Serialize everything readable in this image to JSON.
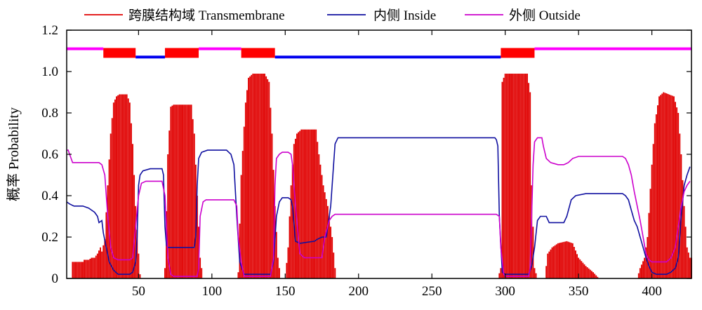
{
  "chart_data": {
    "type": "line",
    "xlabel": "",
    "ylabel": "概率 Probability",
    "xlim": [
      1,
      427
    ],
    "ylim": [
      0,
      1.2
    ],
    "xticks": [
      50,
      100,
      150,
      200,
      250,
      300,
      350,
      400
    ],
    "yticks": [
      0,
      0.2,
      0.4,
      0.6,
      0.8,
      1.0,
      1.2
    ],
    "ytick_labels": [
      "0",
      "0.2",
      "0.4",
      "0.6",
      "0.8",
      "1.0",
      "1.2"
    ],
    "grid": false,
    "legend_position": "top",
    "series": [
      {
        "name": "跨膜结构域 Transmembrane",
        "style": "bars",
        "color": "#e00000",
        "points": [
          [
            4,
            0
          ],
          [
            5,
            0.08
          ],
          [
            12,
            0.08
          ],
          [
            13,
            0.09
          ],
          [
            16,
            0.09
          ],
          [
            18,
            0.1
          ],
          [
            20,
            0.1
          ],
          [
            22,
            0.12
          ],
          [
            24,
            0.15
          ],
          [
            25,
            0.13
          ],
          [
            27,
            0.19
          ],
          [
            29,
            0.45
          ],
          [
            31,
            0.7
          ],
          [
            33,
            0.85
          ],
          [
            35,
            0.88
          ],
          [
            37,
            0.89
          ],
          [
            42,
            0.89
          ],
          [
            44,
            0.85
          ],
          [
            46,
            0.65
          ],
          [
            48,
            0.35
          ],
          [
            50,
            0.12
          ],
          [
            51,
            0.02
          ],
          [
            52,
            0
          ],
          [
            67,
            0
          ],
          [
            68,
            0.05
          ],
          [
            70,
            0.6
          ],
          [
            72,
            0.83
          ],
          [
            74,
            0.84
          ],
          [
            86,
            0.84
          ],
          [
            88,
            0.7
          ],
          [
            90,
            0.4
          ],
          [
            92,
            0.1
          ],
          [
            94,
            0
          ],
          [
            117,
            0
          ],
          [
            118,
            0.03
          ],
          [
            120,
            0.5
          ],
          [
            123,
            0.85
          ],
          [
            125,
            0.97
          ],
          [
            128,
            0.99
          ],
          [
            136,
            0.99
          ],
          [
            139,
            0.95
          ],
          [
            141,
            0.7
          ],
          [
            143,
            0.35
          ],
          [
            145,
            0.1
          ],
          [
            147,
            0
          ],
          [
            150,
            0
          ],
          [
            152,
            0.15
          ],
          [
            154,
            0.45
          ],
          [
            156,
            0.65
          ],
          [
            158,
            0.7
          ],
          [
            161,
            0.72
          ],
          [
            171,
            0.72
          ],
          [
            173,
            0.6
          ],
          [
            176,
            0.45
          ],
          [
            179,
            0.35
          ],
          [
            182,
            0.2
          ],
          [
            184,
            0.05
          ],
          [
            185,
            0
          ],
          [
            295,
            0
          ],
          [
            297,
            0.05
          ],
          [
            298,
            0.95
          ],
          [
            300,
            0.99
          ],
          [
            315,
            0.99
          ],
          [
            317,
            0.9
          ],
          [
            318,
            0.45
          ],
          [
            320,
            0.05
          ],
          [
            322,
            0
          ],
          [
            327,
            0
          ],
          [
            329,
            0.12
          ],
          [
            332,
            0.15
          ],
          [
            336,
            0.17
          ],
          [
            342,
            0.18
          ],
          [
            346,
            0.17
          ],
          [
            350,
            0.1
          ],
          [
            355,
            0.06
          ],
          [
            360,
            0.03
          ],
          [
            364,
            0
          ],
          [
            390,
            0
          ],
          [
            392,
            0.05
          ],
          [
            395,
            0.1
          ],
          [
            397,
            0.2
          ],
          [
            400,
            0.55
          ],
          [
            402,
            0.75
          ],
          [
            405,
            0.88
          ],
          [
            408,
            0.9
          ],
          [
            415,
            0.88
          ],
          [
            418,
            0.8
          ],
          [
            420,
            0.6
          ],
          [
            422,
            0.35
          ],
          [
            424,
            0.15
          ],
          [
            426,
            0.1
          ]
        ]
      },
      {
        "name": "内侧 Inside",
        "style": "line",
        "color": "#1010a0",
        "points": [
          [
            1,
            0.37
          ],
          [
            3,
            0.36
          ],
          [
            6,
            0.35
          ],
          [
            12,
            0.35
          ],
          [
            16,
            0.34
          ],
          [
            20,
            0.32
          ],
          [
            22,
            0.3
          ],
          [
            23,
            0.27
          ],
          [
            25,
            0.28
          ],
          [
            26,
            0.22
          ],
          [
            28,
            0.15
          ],
          [
            30,
            0.08
          ],
          [
            33,
            0.04
          ],
          [
            36,
            0.02
          ],
          [
            44,
            0.02
          ],
          [
            46,
            0.03
          ],
          [
            48,
            0.08
          ],
          [
            49,
            0.2
          ],
          [
            50,
            0.45
          ],
          [
            51,
            0.5
          ],
          [
            53,
            0.52
          ],
          [
            58,
            0.53
          ],
          [
            66,
            0.53
          ],
          [
            67,
            0.5
          ],
          [
            68,
            0.25
          ],
          [
            69,
            0.16
          ],
          [
            70,
            0.15
          ],
          [
            88,
            0.15
          ],
          [
            89,
            0.2
          ],
          [
            90,
            0.45
          ],
          [
            91,
            0.58
          ],
          [
            93,
            0.61
          ],
          [
            97,
            0.62
          ],
          [
            110,
            0.62
          ],
          [
            113,
            0.6
          ],
          [
            115,
            0.55
          ],
          [
            117,
            0.3
          ],
          [
            119,
            0.08
          ],
          [
            122,
            0.02
          ],
          [
            140,
            0.02
          ],
          [
            142,
            0.08
          ],
          [
            144,
            0.3
          ],
          [
            146,
            0.37
          ],
          [
            148,
            0.39
          ],
          [
            152,
            0.39
          ],
          [
            154,
            0.38
          ],
          [
            155,
            0.35
          ],
          [
            157,
            0.18
          ],
          [
            160,
            0.17
          ],
          [
            170,
            0.18
          ],
          [
            172,
            0.19
          ],
          [
            175,
            0.2
          ],
          [
            178,
            0.2
          ],
          [
            181,
            0.35
          ],
          [
            183,
            0.55
          ],
          [
            184,
            0.65
          ],
          [
            186,
            0.68
          ],
          [
            200,
            0.68
          ],
          [
            293,
            0.68
          ],
          [
            294,
            0.67
          ],
          [
            295,
            0.64
          ],
          [
            296,
            0.3
          ],
          [
            298,
            0.03
          ],
          [
            300,
            0.02
          ],
          [
            316,
            0.02
          ],
          [
            318,
            0.06
          ],
          [
            320,
            0.15
          ],
          [
            322,
            0.28
          ],
          [
            324,
            0.3
          ],
          [
            328,
            0.3
          ],
          [
            330,
            0.27
          ],
          [
            336,
            0.27
          ],
          [
            340,
            0.27
          ],
          [
            342,
            0.3
          ],
          [
            345,
            0.38
          ],
          [
            348,
            0.4
          ],
          [
            355,
            0.41
          ],
          [
            380,
            0.41
          ],
          [
            382,
            0.4
          ],
          [
            384,
            0.38
          ],
          [
            386,
            0.33
          ],
          [
            388,
            0.28
          ],
          [
            390,
            0.25
          ],
          [
            392,
            0.2
          ],
          [
            394,
            0.15
          ],
          [
            396,
            0.1
          ],
          [
            398,
            0.06
          ],
          [
            400,
            0.03
          ],
          [
            403,
            0.02
          ],
          [
            410,
            0.02
          ],
          [
            413,
            0.03
          ],
          [
            416,
            0.05
          ],
          [
            418,
            0.1
          ],
          [
            420,
            0.3
          ],
          [
            422,
            0.45
          ],
          [
            424,
            0.5
          ],
          [
            426,
            0.54
          ]
        ]
      },
      {
        "name": "外侧 Outside",
        "style": "line",
        "color": "#cc00cc",
        "points": [
          [
            1,
            0.62
          ],
          [
            2,
            0.62
          ],
          [
            3,
            0.6
          ],
          [
            4,
            0.58
          ],
          [
            5,
            0.56
          ],
          [
            20,
            0.56
          ],
          [
            23,
            0.56
          ],
          [
            25,
            0.55
          ],
          [
            27,
            0.5
          ],
          [
            29,
            0.3
          ],
          [
            31,
            0.15
          ],
          [
            33,
            0.1
          ],
          [
            36,
            0.09
          ],
          [
            44,
            0.09
          ],
          [
            46,
            0.1
          ],
          [
            48,
            0.25
          ],
          [
            50,
            0.4
          ],
          [
            52,
            0.46
          ],
          [
            55,
            0.47
          ],
          [
            66,
            0.47
          ],
          [
            68,
            0.4
          ],
          [
            70,
            0.1
          ],
          [
            72,
            0.02
          ],
          [
            74,
            0.01
          ],
          [
            90,
            0.01
          ],
          [
            91,
            0.05
          ],
          [
            92,
            0.3
          ],
          [
            94,
            0.37
          ],
          [
            96,
            0.38
          ],
          [
            115,
            0.38
          ],
          [
            117,
            0.35
          ],
          [
            118,
            0.2
          ],
          [
            120,
            0.08
          ],
          [
            122,
            0.01
          ],
          [
            140,
            0.01
          ],
          [
            142,
            0.1
          ],
          [
            143,
            0.45
          ],
          [
            144,
            0.58
          ],
          [
            146,
            0.6
          ],
          [
            148,
            0.61
          ],
          [
            152,
            0.61
          ],
          [
            154,
            0.6
          ],
          [
            155,
            0.55
          ],
          [
            157,
            0.35
          ],
          [
            160,
            0.12
          ],
          [
            163,
            0.1
          ],
          [
            175,
            0.1
          ],
          [
            177,
            0.2
          ],
          [
            180,
            0.28
          ],
          [
            182,
            0.3
          ],
          [
            184,
            0.31
          ],
          [
            186,
            0.31
          ],
          [
            200,
            0.31
          ],
          [
            294,
            0.31
          ],
          [
            296,
            0.3
          ],
          [
            297,
            0.15
          ],
          [
            299,
            0.02
          ],
          [
            300,
            0.01
          ],
          [
            316,
            0.01
          ],
          [
            317,
            0.05
          ],
          [
            318,
            0.3
          ],
          [
            319,
            0.55
          ],
          [
            320,
            0.66
          ],
          [
            322,
            0.68
          ],
          [
            325,
            0.68
          ],
          [
            326,
            0.64
          ],
          [
            328,
            0.58
          ],
          [
            331,
            0.56
          ],
          [
            336,
            0.55
          ],
          [
            340,
            0.55
          ],
          [
            343,
            0.56
          ],
          [
            346,
            0.58
          ],
          [
            350,
            0.59
          ],
          [
            356,
            0.59
          ],
          [
            380,
            0.59
          ],
          [
            382,
            0.58
          ],
          [
            384,
            0.55
          ],
          [
            386,
            0.5
          ],
          [
            388,
            0.42
          ],
          [
            390,
            0.35
          ],
          [
            392,
            0.28
          ],
          [
            394,
            0.2
          ],
          [
            396,
            0.12
          ],
          [
            398,
            0.09
          ],
          [
            400,
            0.08
          ],
          [
            410,
            0.08
          ],
          [
            413,
            0.1
          ],
          [
            416,
            0.15
          ],
          [
            418,
            0.25
          ],
          [
            420,
            0.35
          ],
          [
            422,
            0.42
          ],
          [
            424,
            0.45
          ],
          [
            426,
            0.47
          ]
        ]
      }
    ],
    "topology_bars": {
      "segments": [
        {
          "type": "outside",
          "start": 1,
          "end": 26
        },
        {
          "type": "tm",
          "start": 26,
          "end": 48
        },
        {
          "type": "inside",
          "start": 48,
          "end": 68
        },
        {
          "type": "tm",
          "start": 68,
          "end": 91
        },
        {
          "type": "outside",
          "start": 91,
          "end": 120
        },
        {
          "type": "tm",
          "start": 120,
          "end": 143
        },
        {
          "type": "inside",
          "start": 143,
          "end": 297
        },
        {
          "type": "tm",
          "start": 297,
          "end": 320
        },
        {
          "type": "outside",
          "start": 320,
          "end": 427
        }
      ],
      "values": {
        "tm": 1.09,
        "inside": 1.07,
        "outside": 1.11
      },
      "colors": {
        "tm": "#ff0000",
        "inside": "#0000ee",
        "outside": "#ff00ff"
      }
    }
  }
}
